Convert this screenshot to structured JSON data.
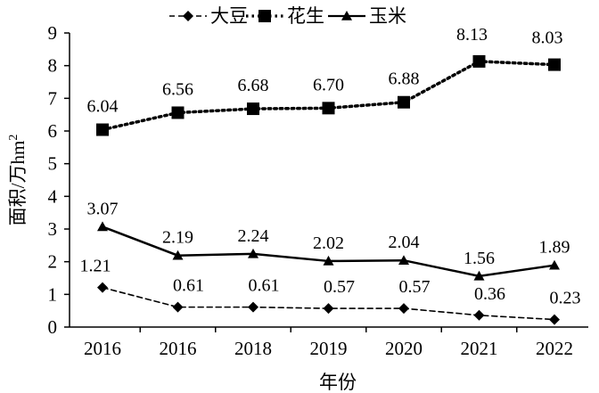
{
  "chart_data": {
    "type": "line",
    "title": "",
    "xlabel": "年份",
    "ylabel": "面积/万hm²",
    "ylabel_main": "面积/万hm",
    "ylabel_sup": "2",
    "categories": [
      "2016",
      "2016",
      "2018",
      "2019",
      "2020",
      "2021",
      "2022"
    ],
    "ylim": [
      0,
      9
    ],
    "yticks": [
      "0",
      "1",
      "2",
      "3",
      "4",
      "5",
      "6",
      "7",
      "8",
      "9"
    ],
    "grid": false,
    "legend_position": "top",
    "series": [
      {
        "name": "大豆",
        "marker": "diamond",
        "line_style": "dashed",
        "color": "#000000",
        "values": [
          1.21,
          0.61,
          0.61,
          0.57,
          0.57,
          0.36,
          0.23
        ],
        "labels": [
          "1.21",
          "0.61",
          "0.61",
          "0.57",
          "0.57",
          "0.36",
          "0.23"
        ]
      },
      {
        "name": "花生",
        "marker": "square",
        "line_style": "dotted",
        "color": "#000000",
        "values": [
          6.04,
          6.56,
          6.68,
          6.7,
          6.88,
          8.13,
          8.03
        ],
        "labels": [
          "6.04",
          "6.56",
          "6.68",
          "6.70",
          "6.88",
          "8.13",
          "8.03"
        ]
      },
      {
        "name": "玉米",
        "marker": "triangle",
        "line_style": "solid",
        "color": "#000000",
        "values": [
          3.07,
          2.19,
          2.24,
          2.02,
          2.04,
          1.56,
          1.89
        ],
        "labels": [
          "3.07",
          "2.19",
          "2.24",
          "2.02",
          "2.04",
          "1.56",
          "1.89"
        ]
      }
    ]
  }
}
